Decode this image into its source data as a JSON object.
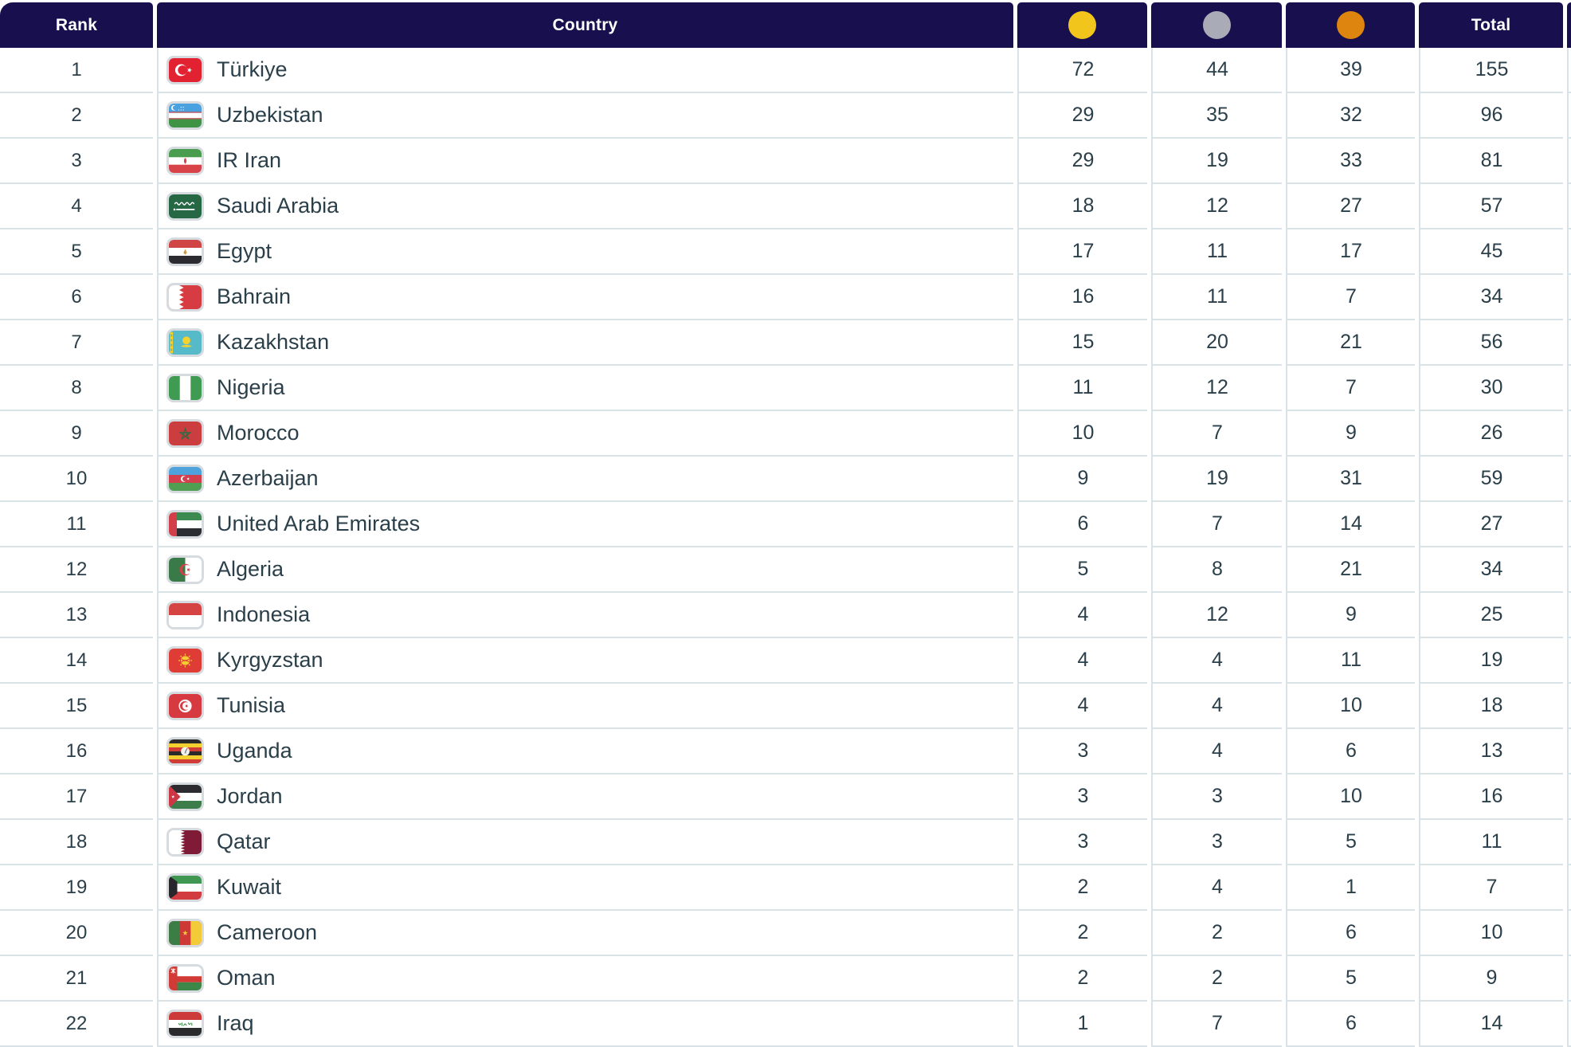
{
  "table": {
    "headers": {
      "rank": "Rank",
      "country": "Country",
      "total": "Total"
    },
    "header_bg": "#18104e",
    "medal_colors": {
      "gold": "#f2c51d",
      "silver": "#a9abb6",
      "bronze": "#dd850f"
    },
    "rows": [
      {
        "rank": "1",
        "country": "Türkiye",
        "flag": "tur",
        "gold": "72",
        "silver": "44",
        "bronze": "39",
        "total": "155"
      },
      {
        "rank": "2",
        "country": "Uzbekistan",
        "flag": "uzb",
        "gold": "29",
        "silver": "35",
        "bronze": "32",
        "total": "96"
      },
      {
        "rank": "3",
        "country": "IR Iran",
        "flag": "irn",
        "gold": "29",
        "silver": "19",
        "bronze": "33",
        "total": "81"
      },
      {
        "rank": "4",
        "country": "Saudi Arabia",
        "flag": "sau",
        "gold": "18",
        "silver": "12",
        "bronze": "27",
        "total": "57"
      },
      {
        "rank": "5",
        "country": "Egypt",
        "flag": "egy",
        "gold": "17",
        "silver": "11",
        "bronze": "17",
        "total": "45"
      },
      {
        "rank": "6",
        "country": "Bahrain",
        "flag": "bhr",
        "gold": "16",
        "silver": "11",
        "bronze": "7",
        "total": "34"
      },
      {
        "rank": "7",
        "country": "Kazakhstan",
        "flag": "kaz",
        "gold": "15",
        "silver": "20",
        "bronze": "21",
        "total": "56"
      },
      {
        "rank": "8",
        "country": "Nigeria",
        "flag": "nga",
        "gold": "11",
        "silver": "12",
        "bronze": "7",
        "total": "30"
      },
      {
        "rank": "9",
        "country": "Morocco",
        "flag": "mar",
        "gold": "10",
        "silver": "7",
        "bronze": "9",
        "total": "26"
      },
      {
        "rank": "10",
        "country": "Azerbaijan",
        "flag": "aze",
        "gold": "9",
        "silver": "19",
        "bronze": "31",
        "total": "59"
      },
      {
        "rank": "11",
        "country": "United Arab Emirates",
        "flag": "are",
        "gold": "6",
        "silver": "7",
        "bronze": "14",
        "total": "27"
      },
      {
        "rank": "12",
        "country": "Algeria",
        "flag": "dza",
        "gold": "5",
        "silver": "8",
        "bronze": "21",
        "total": "34"
      },
      {
        "rank": "13",
        "country": "Indonesia",
        "flag": "idn",
        "gold": "4",
        "silver": "12",
        "bronze": "9",
        "total": "25"
      },
      {
        "rank": "14",
        "country": "Kyrgyzstan",
        "flag": "kgz",
        "gold": "4",
        "silver": "4",
        "bronze": "11",
        "total": "19"
      },
      {
        "rank": "15",
        "country": "Tunisia",
        "flag": "tun",
        "gold": "4",
        "silver": "4",
        "bronze": "10",
        "total": "18"
      },
      {
        "rank": "16",
        "country": "Uganda",
        "flag": "uga",
        "gold": "3",
        "silver": "4",
        "bronze": "6",
        "total": "13"
      },
      {
        "rank": "17",
        "country": "Jordan",
        "flag": "jor",
        "gold": "3",
        "silver": "3",
        "bronze": "10",
        "total": "16"
      },
      {
        "rank": "18",
        "country": "Qatar",
        "flag": "qat",
        "gold": "3",
        "silver": "3",
        "bronze": "5",
        "total": "11"
      },
      {
        "rank": "19",
        "country": "Kuwait",
        "flag": "kwt",
        "gold": "2",
        "silver": "4",
        "bronze": "1",
        "total": "7"
      },
      {
        "rank": "20",
        "country": "Cameroon",
        "flag": "cmr",
        "gold": "2",
        "silver": "2",
        "bronze": "6",
        "total": "10"
      },
      {
        "rank": "21",
        "country": "Oman",
        "flag": "omn",
        "gold": "2",
        "silver": "2",
        "bronze": "5",
        "total": "9"
      },
      {
        "rank": "22",
        "country": "Iraq",
        "flag": "irq",
        "gold": "1",
        "silver": "7",
        "bronze": "6",
        "total": "14"
      }
    ]
  }
}
